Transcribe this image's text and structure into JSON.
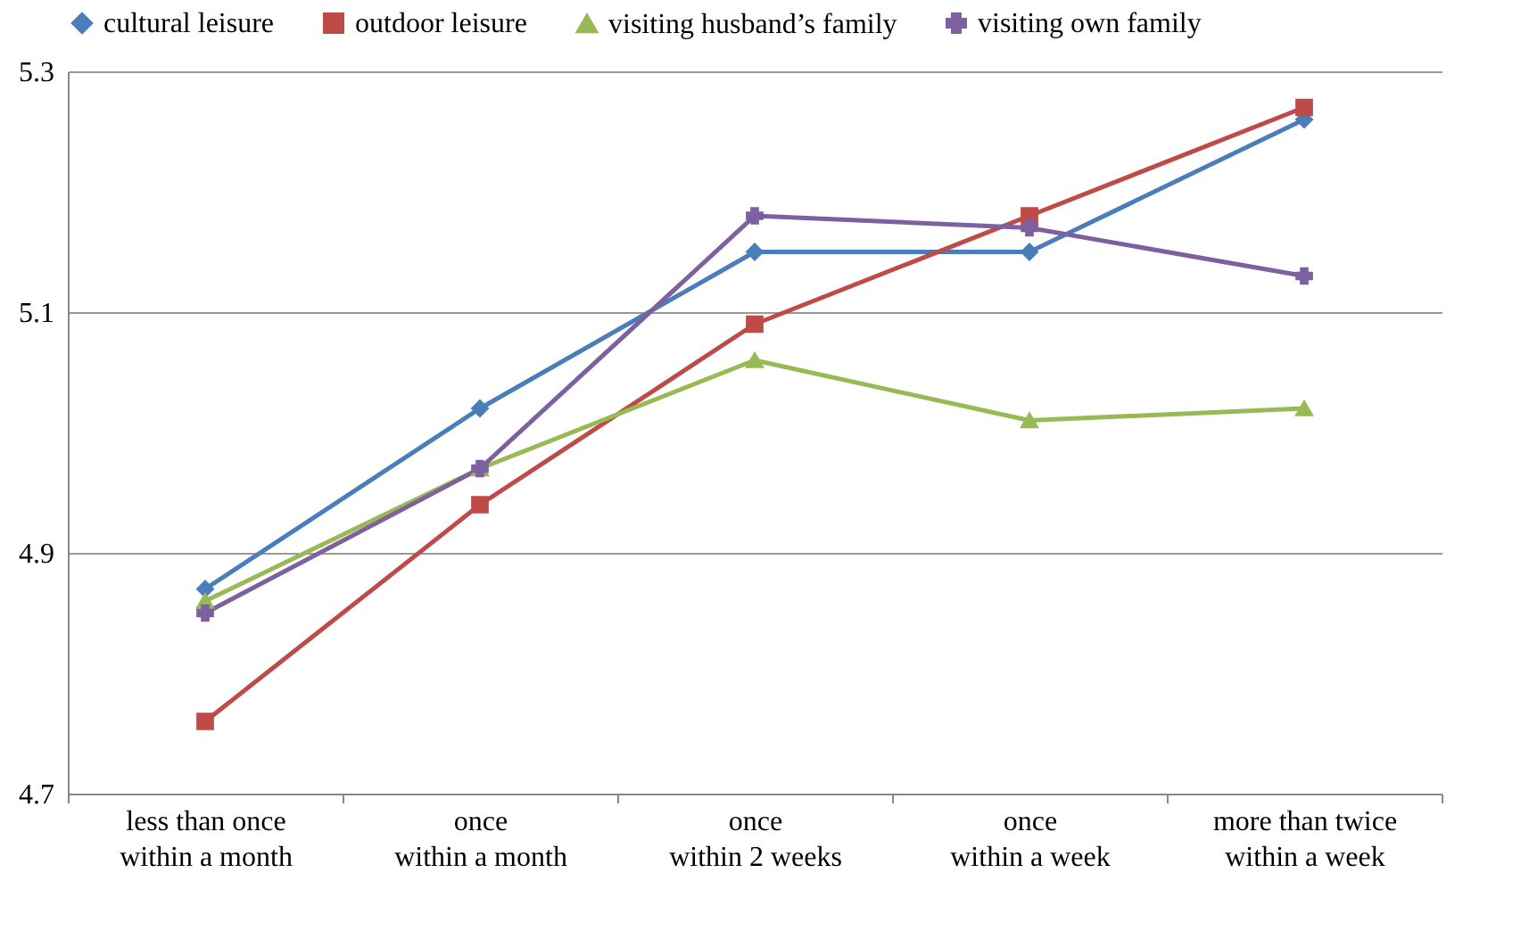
{
  "chart_data": {
    "type": "line",
    "categories": [
      "less than once within a month",
      "once within a month",
      "once within 2 weeks",
      "once within a week",
      "more than twice within a week"
    ],
    "series": [
      {
        "name": "cultural leisure",
        "color": "#4a7ebb",
        "marker": "diamond",
        "values": [
          4.87,
          5.02,
          5.15,
          5.15,
          5.26
        ]
      },
      {
        "name": "outdoor leisure",
        "color": "#be4b48",
        "marker": "square",
        "values": [
          4.76,
          4.94,
          5.09,
          5.18,
          5.27
        ]
      },
      {
        "name": "visiting husband’s family",
        "color": "#98b954",
        "marker": "triangle",
        "values": [
          4.86,
          4.97,
          5.06,
          5.01,
          5.02
        ]
      },
      {
        "name": "visiting own family",
        "color": "#7d60a0",
        "marker": "cross",
        "values": [
          4.85,
          4.97,
          5.18,
          5.17,
          5.13
        ]
      }
    ],
    "ylim": [
      4.7,
      5.3
    ],
    "yticks": [
      4.7,
      4.9,
      5.1,
      5.3
    ],
    "grid": "y",
    "legend": "top",
    "line_style": "solid"
  }
}
